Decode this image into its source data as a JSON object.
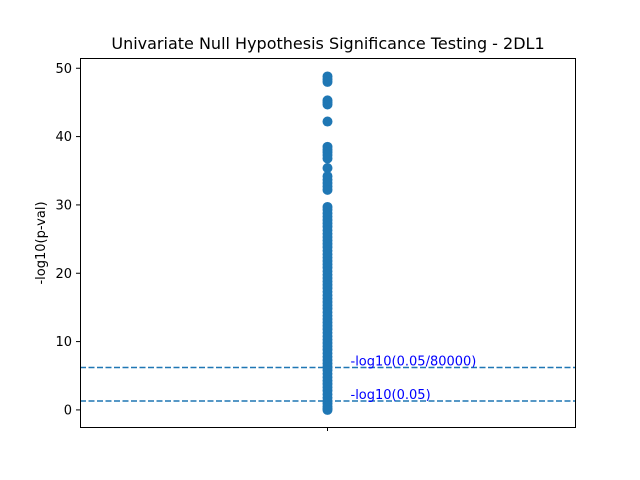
{
  "chart_data": {
    "type": "scatter",
    "title": "Univariate Null Hypothesis Significance Testing - 2DL1",
    "ylabel": "-log10(p-val)",
    "xlabel": "",
    "ylim": [
      -2.5,
      51.5
    ],
    "yticks": [
      0,
      10,
      20,
      30,
      40,
      50
    ],
    "xticks_labels": [],
    "grid": false,
    "colors": {
      "points": "#1f77b4",
      "lines": "#1f77b4",
      "annotations": "#0000ff"
    },
    "series": [
      {
        "x": 0,
        "y": [
          48.8,
          48.4,
          48.0,
          45.3,
          45.0,
          44.7,
          42.2,
          38.5,
          38.1,
          37.7,
          37.3,
          36.8,
          35.4,
          34.2,
          33.7,
          33.2,
          32.7,
          32.2,
          29.7,
          29.3,
          28.8,
          28.3,
          27.8,
          27.3,
          26.8,
          26.3,
          25.8,
          25.3,
          24.8,
          24.3,
          23.8,
          23.3,
          22.8,
          22.3,
          21.8,
          21.3,
          20.8,
          20.3,
          19.8,
          19.3,
          18.8,
          18.3,
          17.8,
          17.3,
          16.8,
          16.3,
          15.8,
          15.3,
          14.8,
          14.3,
          13.8,
          13.3,
          12.8,
          12.3,
          11.8,
          11.3,
          10.8,
          10.3,
          9.8,
          9.3,
          8.8,
          8.3,
          7.8,
          7.3,
          6.8,
          6.3,
          5.8,
          5.3,
          4.8,
          4.3,
          3.8,
          3.3,
          2.8,
          2.3,
          1.8,
          1.3,
          0.9,
          0.5,
          0.2,
          0.0
        ]
      }
    ],
    "hlines": [
      {
        "y": 6.2,
        "style": "dashed",
        "label": "-log10(0.05/80000)"
      },
      {
        "y": 1.3,
        "style": "dashed",
        "label": "-log10(0.05)"
      }
    ]
  }
}
